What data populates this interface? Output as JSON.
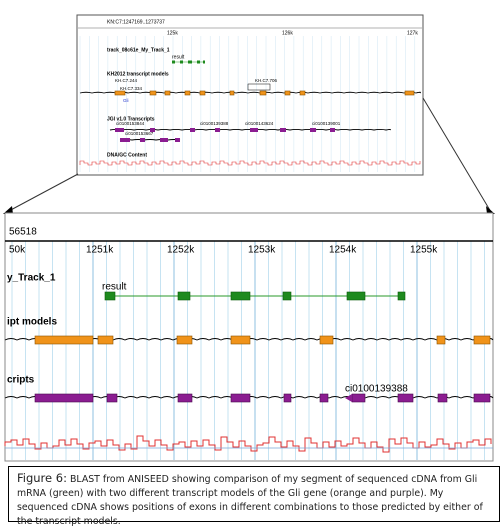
{
  "thumbnail": {
    "location": "KN:C7:1247169..1273737",
    "ticks": [
      "125k",
      "126k",
      "127k"
    ],
    "tracks": {
      "my_track": "track_08c61e_My_Track_1",
      "result": "result",
      "models": "KH2012 transcript models",
      "model_labels": [
        "KH.C7.244",
        "KH.C7.706",
        "KH.C7.334",
        "Gli"
      ],
      "jgi": "JGI v1.0 Transcripts",
      "jgi_labels": [
        "ci0100153844",
        "ci0100139388",
        "ci0100143624",
        "ci0100139001",
        "ci0100153667"
      ],
      "gc": "DNA/GC Content"
    }
  },
  "zoom": {
    "position": "56518",
    "ticks": [
      "50k",
      "1251k",
      "1252k",
      "1253k",
      "1254k",
      "1255k"
    ],
    "tracks": {
      "my_track": "y_Track_1",
      "result": "result",
      "models": "ipt models",
      "jgi": "cripts",
      "jgi_label": "ci0100139388"
    }
  },
  "caption": {
    "label": "Figure 6:",
    "text": "BLAST from ANISEED showing comparison of my segment of sequenced cDNA from Gli mRNA (green) with two different transcript models of the Gli gene (orange and purple). My sequenced cDNA shows positions of exons in different combinations to those predicted by either of the transcript models."
  }
}
